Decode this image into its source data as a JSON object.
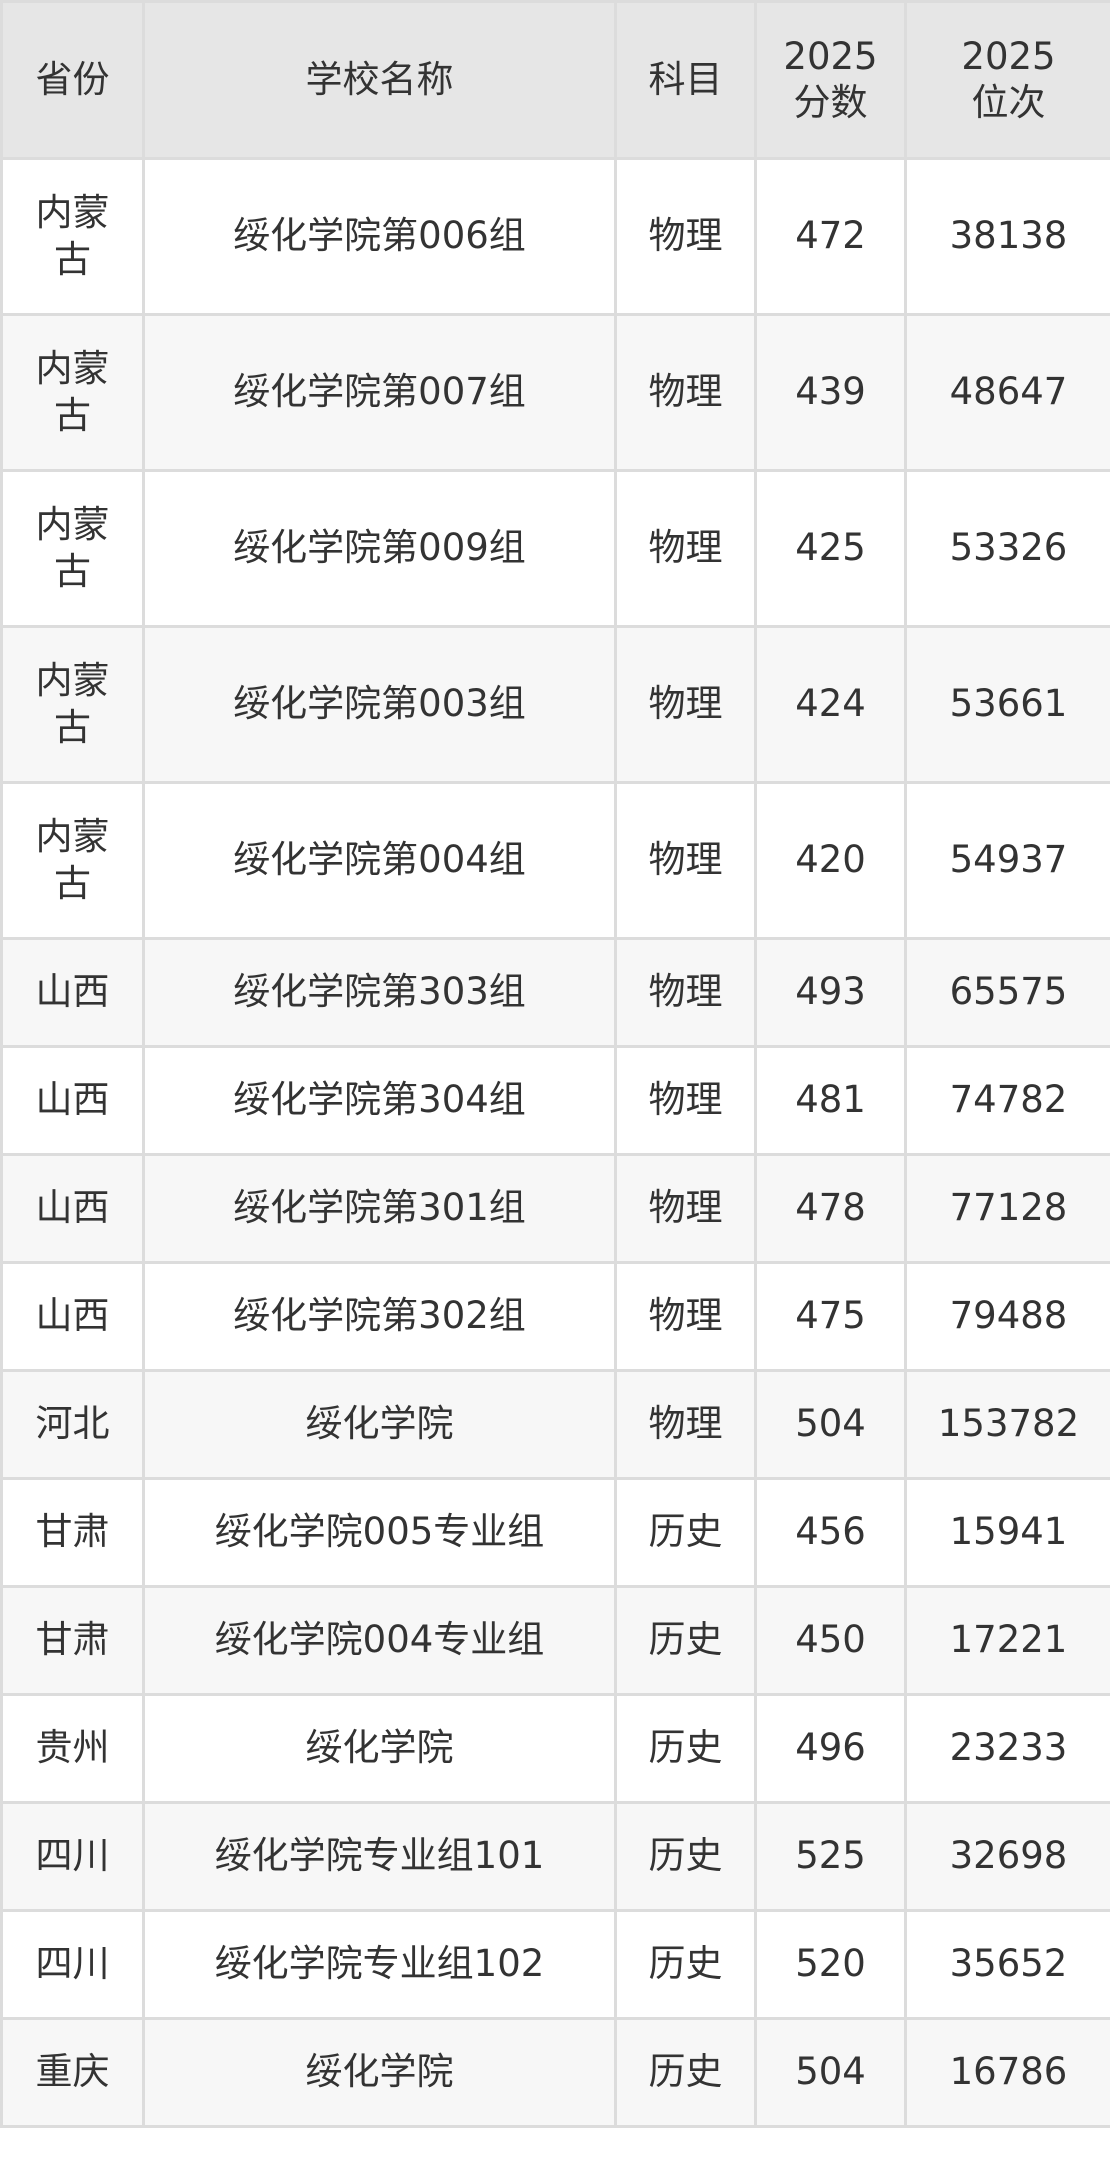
{
  "table": {
    "headers": [
      "省份",
      "学校名称",
      "科目",
      "2025\n分数",
      "2025\n位次"
    ],
    "header_lines": [
      [
        "省份"
      ],
      [
        "学校名称"
      ],
      [
        "科目"
      ],
      [
        "2025",
        "分数"
      ],
      [
        "2025",
        "位次"
      ]
    ],
    "rows": [
      {
        "province": "内蒙古",
        "school": "绥化学院第006组",
        "subject": "物理",
        "score": "472",
        "rank": "38138"
      },
      {
        "province": "内蒙古",
        "school": "绥化学院第007组",
        "subject": "物理",
        "score": "439",
        "rank": "48647"
      },
      {
        "province": "内蒙古",
        "school": "绥化学院第009组",
        "subject": "物理",
        "score": "425",
        "rank": "53326"
      },
      {
        "province": "内蒙古",
        "school": "绥化学院第003组",
        "subject": "物理",
        "score": "424",
        "rank": "53661"
      },
      {
        "province": "内蒙古",
        "school": "绥化学院第004组",
        "subject": "物理",
        "score": "420",
        "rank": "54937"
      },
      {
        "province": "山西",
        "school": "绥化学院第303组",
        "subject": "物理",
        "score": "493",
        "rank": "65575"
      },
      {
        "province": "山西",
        "school": "绥化学院第304组",
        "subject": "物理",
        "score": "481",
        "rank": "74782"
      },
      {
        "province": "山西",
        "school": "绥化学院第301组",
        "subject": "物理",
        "score": "478",
        "rank": "77128"
      },
      {
        "province": "山西",
        "school": "绥化学院第302组",
        "subject": "物理",
        "score": "475",
        "rank": "79488"
      },
      {
        "province": "河北",
        "school": "绥化学院",
        "subject": "物理",
        "score": "504",
        "rank": "153782"
      },
      {
        "province": "甘肃",
        "school": "绥化学院005专业组",
        "subject": "历史",
        "score": "456",
        "rank": "15941"
      },
      {
        "province": "甘肃",
        "school": "绥化学院004专业组",
        "subject": "历史",
        "score": "450",
        "rank": "17221"
      },
      {
        "province": "贵州",
        "school": "绥化学院",
        "subject": "历史",
        "score": "496",
        "rank": "23233"
      },
      {
        "province": "四川",
        "school": "绥化学院专业组101",
        "subject": "历史",
        "score": "525",
        "rank": "32698"
      },
      {
        "province": "四川",
        "school": "绥化学院专业组102",
        "subject": "历史",
        "score": "520",
        "rank": "35652"
      },
      {
        "province": "重庆",
        "school": "绥化学院",
        "subject": "历史",
        "score": "504",
        "rank": "16786"
      }
    ]
  },
  "colors": {
    "header_bg": "#e6e6e6",
    "row_alt_bg": "#f7f7f7",
    "border": "#dcdcdc",
    "text": "#333333"
  }
}
